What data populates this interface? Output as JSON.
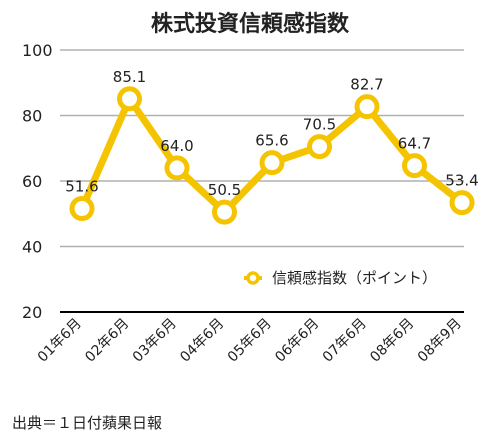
{
  "source_note": "出典＝１日付蘋果日報",
  "chart_data": {
    "type": "line",
    "title": "株式投資信頼感指数",
    "categories": [
      "01年6月",
      "02年6月",
      "03年6月",
      "04年6月",
      "05年6月",
      "06年6月",
      "07年6月",
      "08年6月",
      "08年9月"
    ],
    "series": [
      {
        "name": "信頼感指数（ポイント）",
        "values": [
          51.6,
          85.1,
          64.0,
          50.5,
          65.6,
          70.5,
          82.7,
          64.7,
          53.4
        ],
        "labels": [
          "51.6",
          "85.1",
          "64.0",
          "50.5",
          "65.6",
          "70.5",
          "82.7",
          "64.7",
          "53.4"
        ],
        "color": "#F5C400"
      }
    ],
    "ylim": [
      20,
      100
    ],
    "yticks": [
      "20",
      "40",
      "60",
      "80",
      "100"
    ],
    "xlabel": "",
    "ylabel": "",
    "grid": true,
    "legend": "right",
    "gridColor": "#b0b0b0",
    "baselineColor": "#000000"
  }
}
